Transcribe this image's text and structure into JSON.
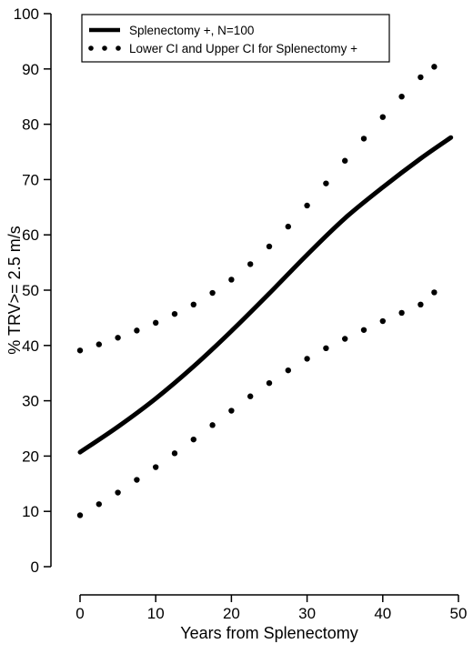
{
  "chart_data": {
    "type": "line",
    "title": "",
    "xlabel": "Years from Splenectomy",
    "ylabel": "% TRV>= 2.5 m/s",
    "xlim": [
      0,
      50
    ],
    "ylim": [
      0,
      100
    ],
    "x_ticks": [
      0,
      10,
      20,
      30,
      40,
      50
    ],
    "y_ticks": [
      0,
      10,
      20,
      30,
      40,
      50,
      60,
      70,
      80,
      90,
      100
    ],
    "grid": false,
    "legend_position": "top-left",
    "legend": [
      {
        "label": "Splenectomy +, N=100",
        "style": "solid"
      },
      {
        "label": "Lower CI and Upper CI for Splenectomy +",
        "style": "dotted"
      }
    ],
    "series": [
      {
        "name": "Splenectomy +, N=100",
        "style": "solid",
        "color": "#000000",
        "x": [
          0,
          5,
          10,
          15,
          20,
          25,
          30,
          35,
          40,
          45,
          49
        ],
        "y": [
          20.7,
          25.3,
          30.4,
          36.2,
          42.6,
          49.4,
          56.4,
          63.0,
          68.6,
          73.8,
          77.6
        ]
      },
      {
        "name": "Upper CI",
        "style": "dotted",
        "color": "#000000",
        "x": [
          0,
          2.5,
          5,
          7.5,
          10,
          12.5,
          15,
          17.5,
          20,
          22.5,
          25,
          27.5,
          30,
          32.5,
          35,
          37.5,
          40,
          42.5,
          45,
          46.8
        ],
        "y": [
          39.1,
          40.2,
          41.4,
          42.7,
          44.1,
          45.7,
          47.4,
          49.5,
          51.9,
          54.7,
          57.9,
          61.5,
          65.3,
          69.3,
          73.4,
          77.4,
          81.3,
          85.0,
          88.5,
          90.4
        ]
      },
      {
        "name": "Lower CI",
        "style": "dotted",
        "color": "#000000",
        "x": [
          0,
          2.5,
          5,
          7.5,
          10,
          12.5,
          15,
          17.5,
          20,
          22.5,
          25,
          27.5,
          30,
          32.5,
          35,
          37.5,
          40,
          42.5,
          45,
          46.8
        ],
        "y": [
          9.3,
          11.3,
          13.4,
          15.7,
          18.0,
          20.5,
          23.0,
          25.6,
          28.2,
          30.8,
          33.2,
          35.5,
          37.6,
          39.5,
          41.2,
          42.8,
          44.4,
          45.9,
          47.4,
          49.6
        ]
      }
    ]
  }
}
